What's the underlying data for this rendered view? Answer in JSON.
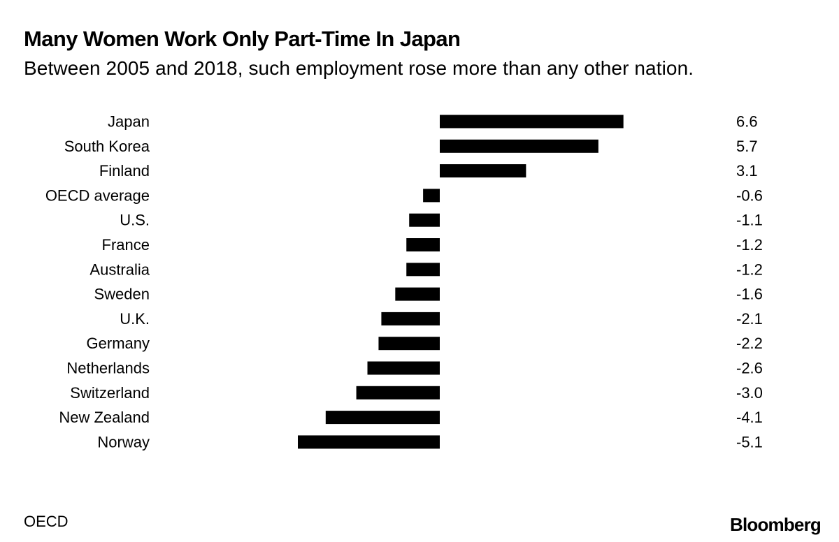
{
  "header": {
    "title": "Many Women Work Only Part-Time In Japan",
    "subtitle": "Between 2005 and 2018, such employment rose more than any other nation."
  },
  "footer": {
    "source": "OECD",
    "brand": "Bloomberg"
  },
  "chart_data": {
    "type": "bar",
    "orientation": "horizontal",
    "categories": [
      "Japan",
      "South Korea",
      "Finland",
      "OECD average",
      "U.S.",
      "France",
      "Australia",
      "Sweden",
      "U.K.",
      "Germany",
      "Netherlands",
      "Switzerland",
      "New Zealand",
      "Norway"
    ],
    "values": [
      6.6,
      5.7,
      3.1,
      -0.6,
      -1.1,
      -1.2,
      -1.2,
      -1.6,
      -2.1,
      -2.2,
      -2.6,
      -3.0,
      -4.1,
      -5.1
    ],
    "value_labels": [
      "6.6",
      "5.7",
      "3.1",
      "-0.6",
      "-1.1",
      "-1.2",
      "-1.2",
      "-1.6",
      "-2.1",
      "-2.2",
      "-2.6",
      "-3.0",
      "-4.1",
      "-5.1"
    ],
    "xlim": [
      -5.1,
      6.6
    ],
    "bar_color": "#000000",
    "grid": false,
    "legend": "none"
  }
}
